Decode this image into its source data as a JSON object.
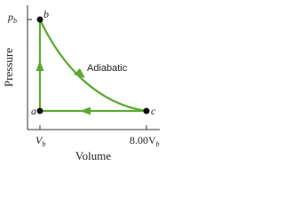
{
  "axes": {
    "y_label": "Pressure",
    "x_label": "Volume",
    "y_tick": {
      "main": "p",
      "sub": "b"
    },
    "x_ticks": [
      {
        "main": "V",
        "sub": "b"
      },
      {
        "main": "8.00V",
        "sub": "b"
      }
    ]
  },
  "points": [
    {
      "label": "a"
    },
    {
      "label": "b"
    },
    {
      "label": "c"
    }
  ],
  "process_label": "Adiabatic"
}
